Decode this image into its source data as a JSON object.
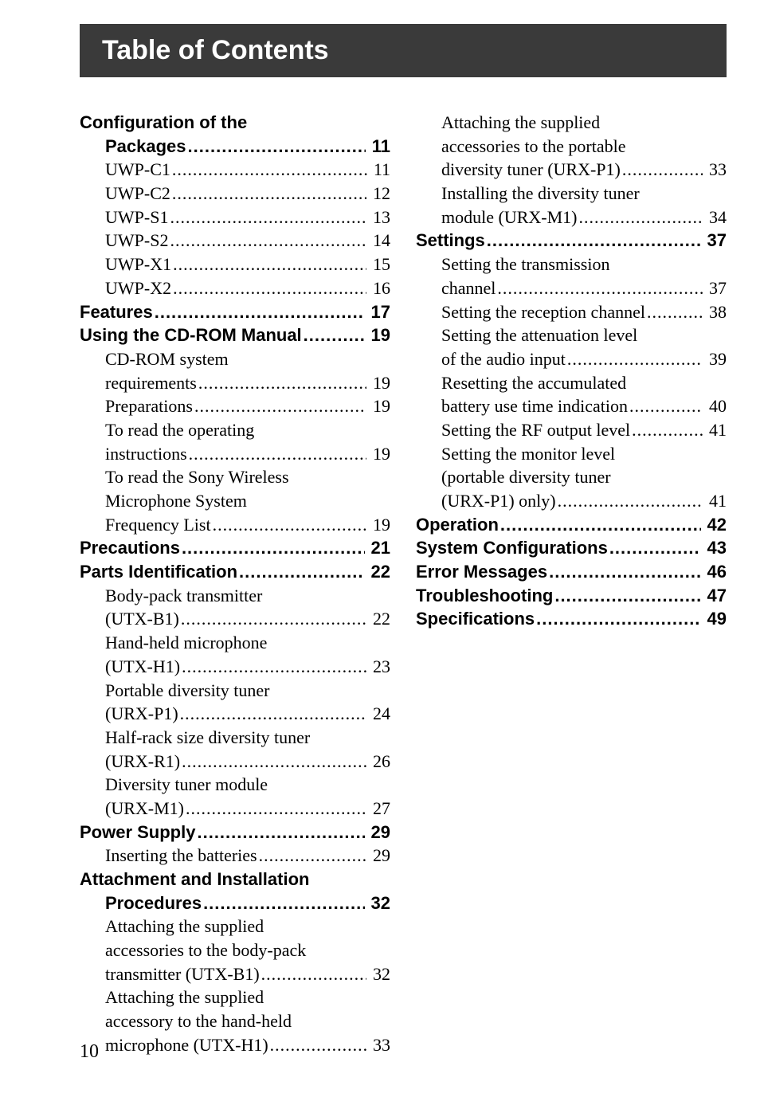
{
  "header": "Table of Contents",
  "page_number": "10",
  "left": [
    {
      "type": "heading-open",
      "lines": [
        "Configuration of the"
      ],
      "last_label": "Packages",
      "page": "11"
    },
    {
      "type": "sub",
      "label": "UWP-C1",
      "page": "11"
    },
    {
      "type": "sub",
      "label": "UWP-C2",
      "page": "12"
    },
    {
      "type": "sub",
      "label": "UWP-S1",
      "page": "13"
    },
    {
      "type": "sub",
      "label": "UWP-S2",
      "page": "14"
    },
    {
      "type": "sub",
      "label": "UWP-X1",
      "page": "15"
    },
    {
      "type": "sub",
      "label": "UWP-X2",
      "page": "16"
    },
    {
      "type": "heading",
      "label": "Features",
      "page": "17"
    },
    {
      "type": "heading",
      "label": "Using the CD-ROM Manual",
      "page": "19"
    },
    {
      "type": "sub-multi",
      "lines": [
        "CD-ROM system"
      ],
      "last_label": "requirements",
      "page": "19"
    },
    {
      "type": "sub",
      "label": "Preparations",
      "page": "19"
    },
    {
      "type": "sub-multi",
      "lines": [
        "To read the operating"
      ],
      "last_label": "instructions",
      "page": "19"
    },
    {
      "type": "sub-multi",
      "lines": [
        "To read the Sony Wireless",
        "Microphone System"
      ],
      "last_label": "Frequency List",
      "page": "19"
    },
    {
      "type": "heading",
      "label": "Precautions",
      "page": "21"
    },
    {
      "type": "heading",
      "label": "Parts Identification",
      "page": "22"
    },
    {
      "type": "sub-multi",
      "lines": [
        "Body-pack transmitter"
      ],
      "last_label": "(UTX-B1)",
      "page": "22"
    },
    {
      "type": "sub-multi",
      "lines": [
        "Hand-held microphone"
      ],
      "last_label": "(UTX-H1)",
      "page": "23"
    },
    {
      "type": "sub-multi",
      "lines": [
        "Portable diversity tuner"
      ],
      "last_label": "(URX-P1)",
      "page": "24"
    },
    {
      "type": "sub-multi",
      "lines": [
        "Half-rack size diversity tuner"
      ],
      "last_label": "(URX-R1)",
      "page": "26"
    },
    {
      "type": "sub-multi",
      "lines": [
        "Diversity tuner module"
      ],
      "last_label": "(URX-M1)",
      "page": "27"
    },
    {
      "type": "heading",
      "label": "Power Supply",
      "page": "29"
    },
    {
      "type": "sub",
      "label": "Inserting the batteries",
      "page": "29"
    },
    {
      "type": "heading-open",
      "lines": [
        "Attachment and Installation"
      ],
      "last_label": "Procedures",
      "page": "32"
    },
    {
      "type": "sub-multi",
      "lines": [
        "Attaching the supplied",
        "accessories to the body-pack"
      ],
      "last_label": "transmitter (UTX-B1)",
      "page": "32"
    },
    {
      "type": "sub-multi",
      "lines": [
        "Attaching the supplied",
        "accessory to the hand-held"
      ],
      "last_label": "microphone (UTX-H1)",
      "page": "33"
    }
  ],
  "right": [
    {
      "type": "sub-multi",
      "lines": [
        "Attaching the supplied",
        "accessories to the portable"
      ],
      "last_label": "diversity tuner (URX-P1)",
      "page": "33"
    },
    {
      "type": "sub-multi",
      "lines": [
        "Installing the diversity tuner"
      ],
      "last_label": "module (URX-M1)",
      "page": "34"
    },
    {
      "type": "heading",
      "label": "Settings",
      "page": "37"
    },
    {
      "type": "sub-multi",
      "lines": [
        "Setting the transmission"
      ],
      "last_label": "channel",
      "page": "37"
    },
    {
      "type": "sub",
      "label": "Setting the reception channel",
      "page": "38"
    },
    {
      "type": "sub-multi",
      "lines": [
        "Setting the attenuation level"
      ],
      "last_label": "of the audio input",
      "page": "39"
    },
    {
      "type": "sub-multi",
      "lines": [
        "Resetting the accumulated"
      ],
      "last_label": "battery use time indication",
      "page": "40"
    },
    {
      "type": "sub",
      "label": "Setting the RF output level",
      "page": "41"
    },
    {
      "type": "sub-multi",
      "lines": [
        "Setting the monitor level",
        "(portable diversity tuner"
      ],
      "last_label": "(URX-P1) only)",
      "page": "41"
    },
    {
      "type": "heading",
      "label": "Operation",
      "page": "42"
    },
    {
      "type": "heading",
      "label": "System Configurations",
      "page": "43"
    },
    {
      "type": "heading",
      "label": "Error Messages",
      "page": "46"
    },
    {
      "type": "heading",
      "label": "Troubleshooting",
      "page": "47"
    },
    {
      "type": "heading",
      "label": "Specifications",
      "page": "49"
    }
  ]
}
